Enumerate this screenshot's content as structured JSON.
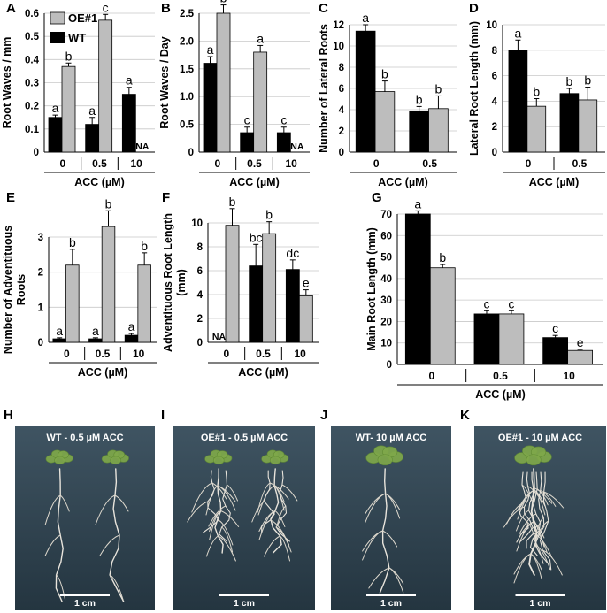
{
  "legend": {
    "items": [
      {
        "label": "OE#1",
        "color": "#bdbdbd"
      },
      {
        "label": "WT",
        "color": "#000000"
      }
    ]
  },
  "colors": {
    "wt": "#000000",
    "oe": "#bdbdbd",
    "photo_bg": "#2d3f4a"
  },
  "chart_data": [
    {
      "panel": "A",
      "type": "bar",
      "ylabel": "Root Waves / mm",
      "xlabel": "ACC (µM)",
      "categories": [
        "0",
        "0.5",
        "10"
      ],
      "ylim": [
        0,
        0.6
      ],
      "yticks": [
        "0",
        "0.1",
        "0.2",
        "0.3",
        "0.4",
        "0.5",
        "0.6"
      ],
      "series": [
        {
          "name": "WT",
          "values": [
            0.15,
            0.12,
            0.25
          ],
          "errors": [
            0.01,
            0.03,
            0.03
          ],
          "letters": [
            "a",
            "a",
            "a"
          ]
        },
        {
          "name": "OE#1",
          "values": [
            0.37,
            0.57,
            null
          ],
          "errors": [
            0.015,
            0.025,
            0
          ],
          "letters": [
            "b",
            "c",
            "NA"
          ]
        }
      ]
    },
    {
      "panel": "B",
      "type": "bar",
      "ylabel": "Root Waves / Day",
      "xlabel": "ACC (µM)",
      "categories": [
        "0",
        "0.5",
        "10"
      ],
      "ylim": [
        0,
        2.5
      ],
      "yticks": [
        "0",
        "0.5",
        "1.0",
        "1.5",
        "2.0",
        "2.5"
      ],
      "series": [
        {
          "name": "WT",
          "values": [
            1.6,
            0.35,
            0.35
          ],
          "errors": [
            0.12,
            0.1,
            0.1
          ],
          "letters": [
            "a",
            "c",
            "c"
          ]
        },
        {
          "name": "OE#1",
          "values": [
            2.5,
            1.8,
            null
          ],
          "errors": [
            0.15,
            0.12,
            0
          ],
          "letters": [
            "b",
            "a",
            "NA"
          ]
        }
      ]
    },
    {
      "panel": "C",
      "type": "bar",
      "ylabel": "Number of Lateral Roots",
      "xlabel": "ACC (µM)",
      "categories": [
        "0",
        "0.5"
      ],
      "ylim": [
        0,
        12
      ],
      "yticks": [
        "0",
        "2",
        "4",
        "6",
        "8",
        "10",
        "12"
      ],
      "series": [
        {
          "name": "WT",
          "values": [
            11.4,
            3.8
          ],
          "errors": [
            0.6,
            0.5
          ],
          "letters": [
            "a",
            "b"
          ]
        },
        {
          "name": "OE#1",
          "values": [
            5.7,
            4.1
          ],
          "errors": [
            1.0,
            1.2
          ],
          "letters": [
            "b",
            "b"
          ]
        }
      ]
    },
    {
      "panel": "D",
      "type": "bar",
      "ylabel": "Lateral Root Length (mm)",
      "xlabel": "ACC (µM)",
      "categories": [
        "0",
        "0.5"
      ],
      "ylim": [
        0,
        10
      ],
      "yticks": [
        "0",
        "2",
        "4",
        "6",
        "8",
        "10"
      ],
      "series": [
        {
          "name": "WT",
          "values": [
            8.0,
            4.6
          ],
          "errors": [
            0.8,
            0.4
          ],
          "letters": [
            "a",
            "b"
          ]
        },
        {
          "name": "OE#1",
          "values": [
            3.6,
            4.1
          ],
          "errors": [
            0.6,
            1.0
          ],
          "letters": [
            "b",
            "b"
          ]
        }
      ]
    },
    {
      "panel": "E",
      "type": "bar",
      "ylabel": "Number of Adventituous Roots",
      "xlabel": "ACC (µM)",
      "categories": [
        "0",
        "0.5",
        "10"
      ],
      "ylim": [
        0,
        3
      ],
      "yticks": [
        "0",
        "1",
        "2",
        "3"
      ],
      "series": [
        {
          "name": "WT",
          "values": [
            0.1,
            0.1,
            0.2
          ],
          "errors": [
            0.03,
            0.03,
            0.05
          ],
          "letters": [
            "a",
            "a",
            "a"
          ]
        },
        {
          "name": "OE#1",
          "values": [
            2.2,
            3.3,
            2.2
          ],
          "errors": [
            0.45,
            0.45,
            0.35
          ],
          "letters": [
            "b",
            "b",
            "b"
          ]
        }
      ]
    },
    {
      "panel": "F",
      "type": "bar",
      "ylabel": "Adventituous Root Length (mm)",
      "xlabel": "ACC (µM)",
      "categories": [
        "0",
        "0.5",
        "10"
      ],
      "ylim": [
        0,
        10
      ],
      "yticks": [
        "0",
        "2",
        "4",
        "6",
        "8",
        "10"
      ],
      "series": [
        {
          "name": "WT",
          "values": [
            null,
            6.4,
            6.1
          ],
          "errors": [
            0,
            1.8,
            0.8
          ],
          "letters": [
            "NA",
            "bc",
            "dc"
          ]
        },
        {
          "name": "OE#1",
          "values": [
            9.8,
            9.1,
            3.9
          ],
          "errors": [
            1.4,
            1.0,
            0.5
          ],
          "letters": [
            "b",
            "b",
            "e"
          ]
        }
      ]
    },
    {
      "panel": "G",
      "type": "bar",
      "ylabel": "Main Root Length (mm)",
      "xlabel": "ACC (µM)",
      "categories": [
        "0",
        "0.5",
        "10"
      ],
      "ylim": [
        0,
        70
      ],
      "yticks": [
        "0",
        "10",
        "20",
        "30",
        "40",
        "50",
        "60",
        "70"
      ],
      "series": [
        {
          "name": "WT",
          "values": [
            70,
            23.5,
            12.5
          ],
          "errors": [
            1.5,
            1.5,
            1.0
          ],
          "letters": [
            "a",
            "c",
            "c"
          ]
        },
        {
          "name": "OE#1",
          "values": [
            45,
            23.5,
            6.5
          ],
          "errors": [
            1.5,
            1.5,
            0.5
          ],
          "letters": [
            "b",
            "c",
            "e"
          ]
        }
      ]
    }
  ],
  "photos": [
    {
      "panel": "H",
      "caption": "WT - 0.5 µM ACC",
      "scale": "1 cm"
    },
    {
      "panel": "I",
      "caption": "OE#1 - 0.5 µM ACC",
      "scale": "1 cm"
    },
    {
      "panel": "J",
      "caption": "WT- 10 µM ACC",
      "scale": "1 cm"
    },
    {
      "panel": "K",
      "caption": "OE#1 - 10 µM ACC",
      "scale": "1 cm"
    }
  ]
}
